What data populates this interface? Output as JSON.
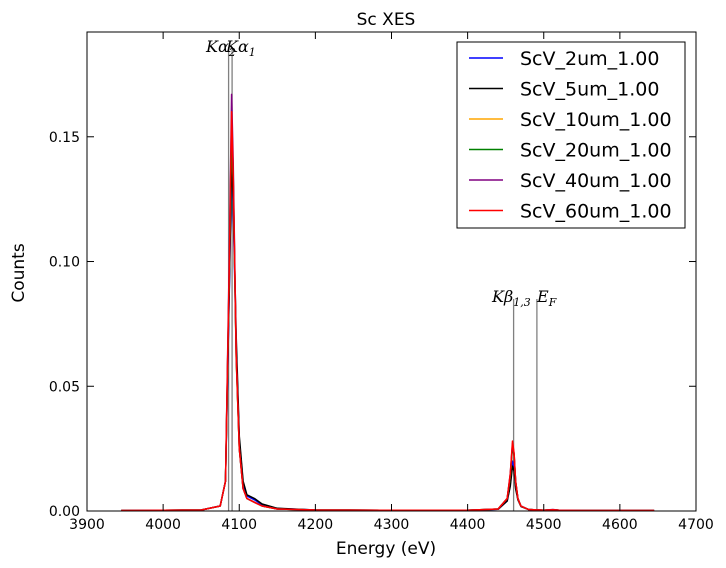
{
  "chart_data": {
    "type": "line",
    "title": "Sc XES",
    "xlabel": "Energy (eV)",
    "ylabel": "Counts",
    "xlim": [
      3900,
      4700
    ],
    "ylim": [
      0,
      0.192
    ],
    "x_ticks": [
      3900,
      4000,
      4100,
      4200,
      4300,
      4400,
      4500,
      4600,
      4700
    ],
    "x_tick_labels": [
      "3900",
      "4000",
      "4100",
      "4200",
      "4300",
      "4400",
      "4500",
      "4600",
      "4700"
    ],
    "y_ticks": [
      0.0,
      0.05,
      0.1,
      0.15
    ],
    "y_tick_labels": [
      "0.00",
      "0.05",
      "0.10",
      "0.15"
    ],
    "grid": false,
    "legend_position": "top-right",
    "reference_lines": [
      {
        "label": "Kα2",
        "x": 4086,
        "y_top": 0.186
      },
      {
        "label": "Kα1",
        "x": 4090.6,
        "y_top": 0.186
      },
      {
        "label": "Kβ1,3",
        "x": 4460.4,
        "y_top": 0.085
      },
      {
        "label": "EF",
        "x": 4491.0,
        "y_top": 0.085
      }
    ],
    "series": [
      {
        "name": "ScV_2um_1.00",
        "color": "#0000ff",
        "x": [
          3945,
          4050,
          4075,
          4082,
          4087,
          4090,
          4092,
          4096,
          4100,
          4105,
          4110,
          4120,
          4130,
          4150,
          4200,
          4300,
          4400,
          4440,
          4452,
          4456,
          4459,
          4461,
          4463,
          4466,
          4470,
          4480,
          4500,
          4512,
          4520,
          4550,
          4645
        ],
        "y": [
          0.0002,
          0.0004,
          0.002,
          0.012,
          0.09,
          0.139,
          0.122,
          0.065,
          0.028,
          0.011,
          0.006,
          0.0045,
          0.0025,
          0.001,
          0.0004,
          0.0003,
          0.0003,
          0.0007,
          0.004,
          0.011,
          0.02,
          0.017,
          0.01,
          0.005,
          0.002,
          0.0006,
          0.0003,
          0.0005,
          0.0003,
          0.0002,
          0.0002
        ]
      },
      {
        "name": "ScV_5um_1.00",
        "color": "#000000",
        "x": [
          3945,
          4050,
          4075,
          4082,
          4087,
          4090,
          4092,
          4096,
          4100,
          4105,
          4110,
          4120,
          4130,
          4150,
          4200,
          4300,
          4400,
          4440,
          4452,
          4456,
          4459,
          4461,
          4463,
          4466,
          4470,
          4480,
          4500,
          4512,
          4520,
          4550,
          4645
        ],
        "y": [
          0.0002,
          0.0004,
          0.002,
          0.012,
          0.092,
          0.14,
          0.125,
          0.07,
          0.03,
          0.012,
          0.0065,
          0.005,
          0.0028,
          0.0011,
          0.0004,
          0.0003,
          0.0003,
          0.0007,
          0.004,
          0.01,
          0.018,
          0.016,
          0.009,
          0.0045,
          0.0018,
          0.0006,
          0.0003,
          0.0005,
          0.0003,
          0.0002,
          0.0002
        ]
      },
      {
        "name": "ScV_10um_1.00",
        "color": "#ffa500",
        "x": [
          3945,
          4050,
          4075,
          4082,
          4087,
          4090,
          4092,
          4096,
          4100,
          4105,
          4110,
          4120,
          4130,
          4150,
          4200,
          4300,
          4400,
          4440,
          4452,
          4456,
          4459,
          4461,
          4463,
          4466,
          4470,
          4480,
          4500,
          4512,
          4520,
          4550,
          4645
        ],
        "y": [
          0.0002,
          0.0004,
          0.002,
          0.012,
          0.1,
          0.155,
          0.135,
          0.062,
          0.025,
          0.009,
          0.005,
          0.0035,
          0.002,
          0.0008,
          0.0004,
          0.0003,
          0.0003,
          0.0008,
          0.005,
          0.014,
          0.026,
          0.022,
          0.012,
          0.005,
          0.002,
          0.0006,
          0.0003,
          0.0005,
          0.0003,
          0.0002,
          0.0002
        ]
      },
      {
        "name": "ScV_20um_1.00",
        "color": "#008000",
        "x": [
          3945,
          4050,
          4075,
          4082,
          4087,
          4090,
          4092,
          4096,
          4100,
          4105,
          4110,
          4120,
          4130,
          4150,
          4200,
          4300,
          4400,
          4440,
          4452,
          4456,
          4459,
          4461,
          4463,
          4466,
          4470,
          4480,
          4500,
          4512,
          4520,
          4550,
          4645
        ],
        "y": [
          0.0002,
          0.0004,
          0.002,
          0.012,
          0.098,
          0.152,
          0.132,
          0.061,
          0.025,
          0.009,
          0.005,
          0.0035,
          0.002,
          0.0008,
          0.0004,
          0.0003,
          0.0003,
          0.0008,
          0.005,
          0.014,
          0.026,
          0.022,
          0.012,
          0.005,
          0.002,
          0.0006,
          0.0003,
          0.0005,
          0.0003,
          0.0002,
          0.0002
        ]
      },
      {
        "name": "ScV_40um_1.00",
        "color": "#800080",
        "x": [
          3945,
          4050,
          4075,
          4082,
          4087,
          4090,
          4092,
          4096,
          4100,
          4105,
          4110,
          4120,
          4130,
          4150,
          4200,
          4300,
          4400,
          4440,
          4452,
          4456,
          4459,
          4461,
          4463,
          4466,
          4470,
          4480,
          4500,
          4512,
          4520,
          4550,
          4645
        ],
        "y": [
          0.0002,
          0.0004,
          0.002,
          0.012,
          0.105,
          0.167,
          0.14,
          0.063,
          0.025,
          0.009,
          0.005,
          0.0035,
          0.002,
          0.0008,
          0.0004,
          0.0003,
          0.0003,
          0.0008,
          0.005,
          0.015,
          0.027,
          0.023,
          0.012,
          0.005,
          0.002,
          0.0006,
          0.0003,
          0.0006,
          0.0003,
          0.0002,
          0.0002
        ]
      },
      {
        "name": "ScV_60um_1.00",
        "color": "#ff0000",
        "x": [
          3945,
          4050,
          4075,
          4082,
          4087,
          4090,
          4092,
          4096,
          4100,
          4105,
          4110,
          4120,
          4130,
          4150,
          4200,
          4300,
          4400,
          4440,
          4452,
          4456,
          4459,
          4461,
          4463,
          4466,
          4470,
          4480,
          4500,
          4512,
          4520,
          4550,
          4645
        ],
        "y": [
          0.0002,
          0.0004,
          0.002,
          0.012,
          0.1,
          0.16,
          0.135,
          0.062,
          0.025,
          0.009,
          0.005,
          0.0035,
          0.002,
          0.0008,
          0.0004,
          0.0003,
          0.0003,
          0.0008,
          0.005,
          0.015,
          0.028,
          0.023,
          0.012,
          0.005,
          0.002,
          0.0006,
          0.0003,
          0.0005,
          0.0003,
          0.0002,
          0.0002
        ]
      }
    ]
  }
}
